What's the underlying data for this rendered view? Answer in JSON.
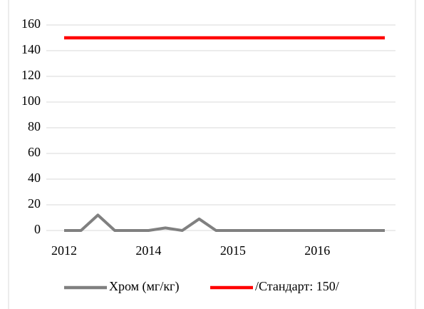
{
  "chart_data": {
    "type": "line",
    "categories": [
      "2012",
      null,
      null,
      null,
      null,
      "2014",
      null,
      null,
      null,
      null,
      "2015",
      null,
      null,
      null,
      null,
      "2016",
      null,
      null,
      null,
      null
    ],
    "series": [
      {
        "name": "Хром (мг/кг)",
        "color": "#808080",
        "values": [
          0,
          0,
          12,
          0,
          0,
          0,
          2,
          0,
          9,
          0,
          0,
          0,
          0,
          0,
          0,
          0,
          0,
          0,
          0,
          0
        ]
      },
      {
        "name": "/Стандарт: 150/",
        "color": "#ff0000",
        "values": [
          150,
          150,
          150,
          150,
          150,
          150,
          150,
          150,
          150,
          150,
          150,
          150,
          150,
          150,
          150,
          150,
          150,
          150,
          150,
          150
        ]
      }
    ],
    "ylim": [
      0,
      160
    ],
    "yticks": [
      0,
      20,
      40,
      60,
      80,
      100,
      120,
      140,
      160
    ],
    "grid": true,
    "legend": "bottom"
  }
}
